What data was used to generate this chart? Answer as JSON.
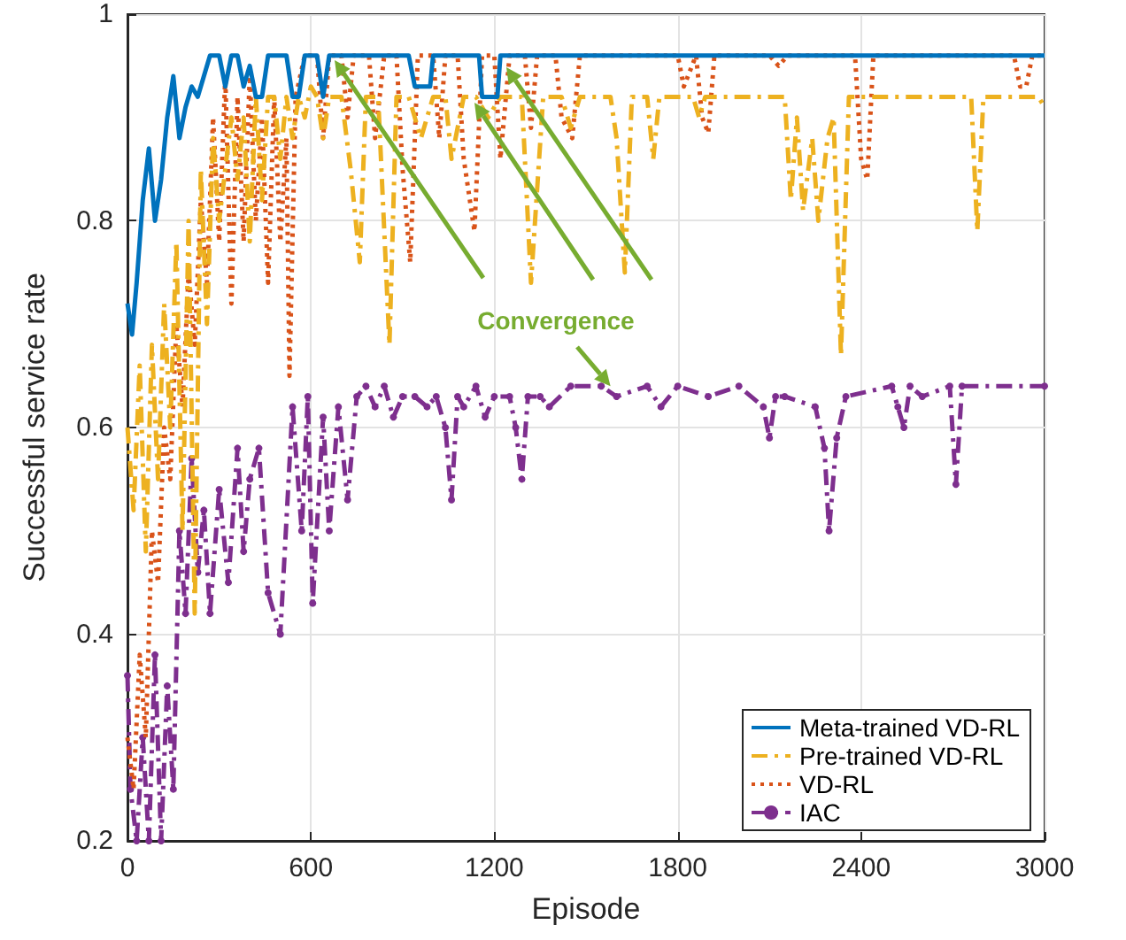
{
  "chart_data": {
    "type": "line",
    "xlabel": "Episode",
    "ylabel": "Successful service rate",
    "xlim": [
      0,
      3000
    ],
    "xticks": [
      0,
      600,
      1200,
      1800,
      2400,
      3000
    ],
    "ylim": [
      0.2,
      1
    ],
    "yticks": [
      0.2,
      0.4,
      0.6,
      0.8,
      1
    ],
    "grid": true,
    "legend": "bottom right",
    "annotations": [
      {
        "text": "Convergence",
        "x": 1580,
        "y": 0.64
      }
    ],
    "series": [
      {
        "name": "Meta-trained VD-RL",
        "color": "#0072bd",
        "line_style": "solid",
        "marker": "none",
        "x": [
          0,
          15,
          30,
          50,
          70,
          90,
          110,
          130,
          150,
          170,
          190,
          210,
          230,
          250,
          270,
          300,
          320,
          340,
          360,
          380,
          400,
          420,
          440,
          460,
          520,
          540,
          560,
          580,
          620,
          640,
          660,
          920,
          940,
          990,
          1000,
          1150,
          1160,
          1210,
          1220,
          3000
        ],
        "values": [
          0.72,
          0.69,
          0.74,
          0.82,
          0.87,
          0.8,
          0.84,
          0.9,
          0.94,
          0.88,
          0.91,
          0.93,
          0.92,
          0.94,
          0.96,
          0.96,
          0.93,
          0.96,
          0.96,
          0.93,
          0.95,
          0.92,
          0.92,
          0.96,
          0.96,
          0.92,
          0.92,
          0.96,
          0.96,
          0.92,
          0.96,
          0.96,
          0.93,
          0.93,
          0.96,
          0.96,
          0.92,
          0.92,
          0.96,
          0.96
        ]
      },
      {
        "name": "Pre-trained VD-RL",
        "color": "#edb120",
        "line_style": "dashed",
        "marker": "none",
        "x": [
          0,
          20,
          40,
          60,
          80,
          100,
          120,
          140,
          160,
          180,
          200,
          220,
          240,
          260,
          280,
          300,
          340,
          360,
          380,
          400,
          420,
          440,
          460,
          480,
          500,
          520,
          540,
          560,
          580,
          600,
          620,
          640,
          660,
          700,
          730,
          760,
          780,
          820,
          857,
          880,
          920,
          960,
          1000,
          1040,
          1060,
          1100,
          1140,
          1180,
          1220,
          1290,
          1320,
          1360,
          1420,
          1450,
          1480,
          1580,
          1600,
          1627,
          1650,
          1700,
          1720,
          1740,
          1850,
          1870,
          1890,
          2150,
          2170,
          2190,
          2210,
          2240,
          2260,
          2290,
          2310,
          2334,
          2360,
          2390,
          2700,
          2760,
          2780,
          2800,
          2980,
          3000
        ],
        "values": [
          0.6,
          0.52,
          0.66,
          0.48,
          0.68,
          0.55,
          0.72,
          0.6,
          0.78,
          0.5,
          0.8,
          0.42,
          0.85,
          0.7,
          0.88,
          0.8,
          0.9,
          0.84,
          0.9,
          0.78,
          0.92,
          0.82,
          0.92,
          0.92,
          0.86,
          0.92,
          0.88,
          0.92,
          0.9,
          0.93,
          0.92,
          0.88,
          0.92,
          0.92,
          0.85,
          0.76,
          0.92,
          0.92,
          0.68,
          0.92,
          0.92,
          0.88,
          0.92,
          0.92,
          0.86,
          0.92,
          0.92,
          0.9,
          0.92,
          0.92,
          0.74,
          0.92,
          0.92,
          0.89,
          0.92,
          0.92,
          0.88,
          0.75,
          0.92,
          0.92,
          0.86,
          0.92,
          0.92,
          0.9,
          0.92,
          0.92,
          0.82,
          0.9,
          0.81,
          0.88,
          0.8,
          0.88,
          0.9,
          0.67,
          0.92,
          0.92,
          0.92,
          0.92,
          0.79,
          0.92,
          0.92,
          0.91
        ]
      },
      {
        "name": "VD-RL",
        "color": "#d95319",
        "line_style": "dotted",
        "marker": "none",
        "x": [
          0,
          20,
          40,
          60,
          80,
          100,
          120,
          140,
          160,
          180,
          200,
          220,
          240,
          260,
          280,
          300,
          320,
          340,
          360,
          380,
          400,
          420,
          440,
          460,
          480,
          500,
          520,
          530,
          550,
          580,
          620,
          640,
          660,
          700,
          720,
          740,
          790,
          810,
          840,
          880,
          900,
          925,
          950,
          1000,
          1020,
          1040,
          1080,
          1100,
          1135,
          1160,
          1200,
          1220,
          1250,
          1300,
          1320,
          1340,
          1400,
          1420,
          1455,
          1480,
          1800,
          1820,
          1860,
          1880,
          1900,
          1920,
          2100,
          2130,
          2160,
          2380,
          2400,
          2420,
          2440,
          2900,
          2920,
          2940,
          2960,
          3000
        ],
        "values": [
          0.3,
          0.25,
          0.38,
          0.3,
          0.5,
          0.45,
          0.6,
          0.55,
          0.7,
          0.62,
          0.75,
          0.68,
          0.82,
          0.74,
          0.9,
          0.78,
          0.94,
          0.72,
          0.92,
          0.78,
          0.94,
          0.8,
          0.9,
          0.74,
          0.92,
          0.78,
          0.88,
          0.65,
          0.92,
          0.96,
          0.96,
          0.88,
          0.96,
          0.96,
          0.9,
          0.96,
          0.96,
          0.88,
          0.96,
          0.96,
          0.85,
          0.76,
          0.96,
          0.96,
          0.88,
          0.96,
          0.96,
          0.86,
          0.79,
          0.96,
          0.96,
          0.86,
          0.96,
          0.96,
          0.89,
          0.96,
          0.96,
          0.9,
          0.88,
          0.96,
          0.96,
          0.93,
          0.96,
          0.9,
          0.885,
          0.96,
          0.96,
          0.95,
          0.96,
          0.96,
          0.86,
          0.84,
          0.96,
          0.96,
          0.93,
          0.93,
          0.96,
          0.96
        ]
      },
      {
        "name": "IAC",
        "color": "#7e2f8e",
        "line_style": "dashed",
        "marker": "circle",
        "x": [
          0,
          10,
          30,
          50,
          70,
          90,
          110,
          130,
          150,
          170,
          190,
          210,
          230,
          250,
          270,
          300,
          330,
          360,
          380,
          400,
          430,
          460,
          500,
          540,
          570,
          590,
          606,
          640,
          660,
          690,
          720,
          750,
          780,
          810,
          840,
          870,
          900,
          940,
          980,
          1010,
          1040,
          1060,
          1080,
          1100,
          1140,
          1170,
          1200,
          1250,
          1270,
          1290,
          1310,
          1350,
          1380,
          1450,
          1550,
          1600,
          1700,
          1745,
          1800,
          1900,
          2000,
          2080,
          2100,
          2120,
          2150,
          2250,
          2280,
          2295,
          2320,
          2350,
          2500,
          2520,
          2540,
          2560,
          2600,
          2690,
          2710,
          2730,
          3000
        ],
        "values": [
          0.36,
          0.25,
          0.2,
          0.3,
          0.2,
          0.38,
          0.2,
          0.35,
          0.25,
          0.5,
          0.42,
          0.57,
          0.46,
          0.52,
          0.42,
          0.54,
          0.45,
          0.58,
          0.48,
          0.55,
          0.58,
          0.44,
          0.4,
          0.62,
          0.5,
          0.63,
          0.43,
          0.61,
          0.5,
          0.62,
          0.53,
          0.63,
          0.64,
          0.62,
          0.64,
          0.61,
          0.63,
          0.63,
          0.62,
          0.63,
          0.6,
          0.53,
          0.63,
          0.62,
          0.64,
          0.61,
          0.63,
          0.63,
          0.6,
          0.55,
          0.63,
          0.63,
          0.62,
          0.64,
          0.64,
          0.63,
          0.64,
          0.62,
          0.64,
          0.63,
          0.64,
          0.62,
          0.59,
          0.63,
          0.63,
          0.62,
          0.58,
          0.5,
          0.59,
          0.63,
          0.64,
          0.62,
          0.6,
          0.64,
          0.63,
          0.64,
          0.545,
          0.64,
          0.64
        ]
      }
    ]
  }
}
